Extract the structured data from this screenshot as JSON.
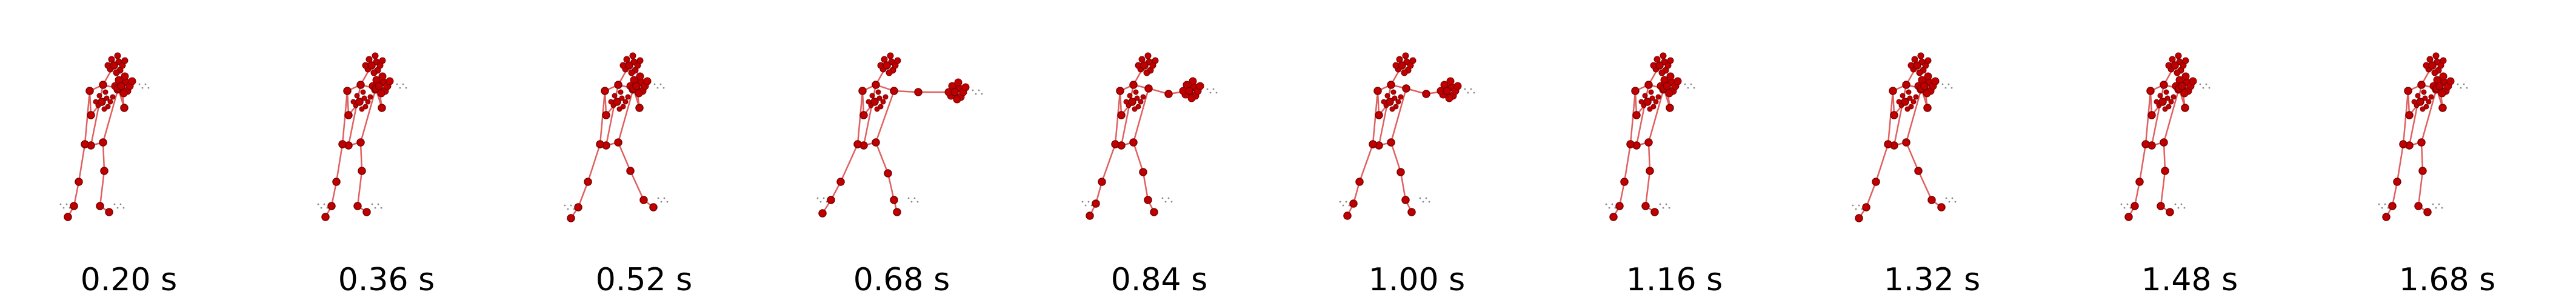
{
  "figure": {
    "frames": [
      {
        "time_label": "0.20 s",
        "pose": "guard"
      },
      {
        "time_label": "0.36 s",
        "pose": "guard"
      },
      {
        "time_label": "0.52 s",
        "pose": "stance-open"
      },
      {
        "time_label": "0.68 s",
        "pose": "punch-extend"
      },
      {
        "time_label": "0.84 s",
        "pose": "punch-retract"
      },
      {
        "time_label": "1.00 s",
        "pose": "punch-retract"
      },
      {
        "time_label": "1.16 s",
        "pose": "guard"
      },
      {
        "time_label": "1.32 s",
        "pose": "stance-open"
      },
      {
        "time_label": "1.48 s",
        "pose": "guard"
      },
      {
        "time_label": "1.68 s",
        "pose": "guard"
      }
    ],
    "colors": {
      "joint": "#c00000",
      "joint_edge": "#7a0000",
      "bone": "#e06060",
      "trail": "#555555",
      "caption": "#000000"
    }
  }
}
